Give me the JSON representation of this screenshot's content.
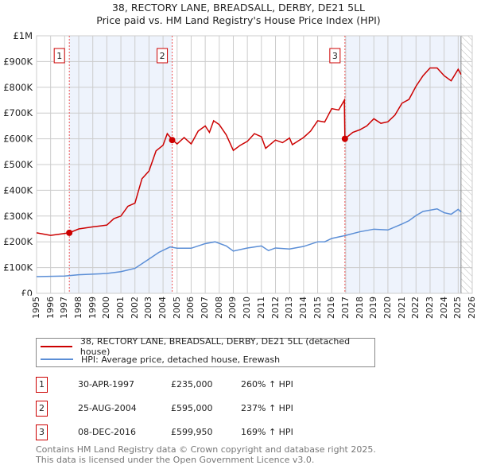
{
  "title": {
    "line1": "38, RECTORY LANE, BREADSALL, DERBY, DE21 5LL",
    "line2": "Price paid vs. HM Land Registry's House Price Index (HPI)"
  },
  "chart_data": {
    "type": "line",
    "xlim": [
      1995,
      2026
    ],
    "ylim": [
      0,
      1000000
    ],
    "x_ticks": [
      "1995",
      "1996",
      "1997",
      "1998",
      "1999",
      "2000",
      "2001",
      "2002",
      "2003",
      "2004",
      "2005",
      "2006",
      "2007",
      "2008",
      "2009",
      "2010",
      "2011",
      "2012",
      "2013",
      "2014",
      "2015",
      "2016",
      "2017",
      "2018",
      "2019",
      "2020",
      "2021",
      "2022",
      "2023",
      "2024",
      "2025",
      "2026"
    ],
    "y_ticks": [
      {
        "v": 0,
        "label": "£0"
      },
      {
        "v": 100000,
        "label": "£100K"
      },
      {
        "v": 200000,
        "label": "£200K"
      },
      {
        "v": 300000,
        "label": "£300K"
      },
      {
        "v": 400000,
        "label": "£400K"
      },
      {
        "v": 500000,
        "label": "£500K"
      },
      {
        "v": 600000,
        "label": "£600K"
      },
      {
        "v": 700000,
        "label": "£700K"
      },
      {
        "v": 800000,
        "label": "£800K"
      },
      {
        "v": 900000,
        "label": "£900K"
      },
      {
        "v": 1000000,
        "label": "£1M"
      }
    ],
    "grid": true,
    "data_end": 2025.2,
    "shaded_ranges": [
      [
        1997.33,
        2004.65
      ],
      [
        2016.94,
        2025.2
      ]
    ],
    "series": [
      {
        "name": "38, RECTORY LANE, BREADSALL, DERBY, DE21 5LL (detached house)",
        "color": "#cc0000",
        "x": [
          1995,
          1996,
          1997.33,
          1998,
          1999,
          2000,
          2000.5,
          2001,
          2001.5,
          2002,
          2002.5,
          2003,
          2003.5,
          2004,
          2004.3,
          2004.65,
          2005,
          2005.5,
          2006,
          2006.5,
          2007,
          2007.3,
          2007.6,
          2008,
          2008.5,
          2009,
          2009.5,
          2010,
          2010.5,
          2011,
          2011.3,
          2012,
          2012.5,
          2013,
          2013.2,
          2014,
          2014.5,
          2015,
          2015.5,
          2016,
          2016.5,
          2016.9,
          2016.94,
          2017.5,
          2018,
          2018.5,
          2019,
          2019.5,
          2020,
          2020.5,
          2021,
          2021.5,
          2022,
          2022.5,
          2023,
          2023.5,
          2024,
          2024.5,
          2025,
          2025.2
        ],
        "y": [
          235,
          225,
          235,
          250,
          258,
          265,
          290,
          300,
          338,
          350,
          445,
          475,
          553,
          575,
          620,
          597,
          580,
          605,
          580,
          630,
          650,
          625,
          670,
          655,
          615,
          555,
          575,
          590,
          620,
          608,
          563,
          595,
          585,
          603,
          577,
          605,
          630,
          670,
          665,
          717,
          712,
          750,
          600,
          625,
          635,
          650,
          678,
          660,
          666,
          692,
          738,
          753,
          804,
          845,
          875,
          875,
          845,
          825,
          870,
          850
        ]
      },
      {
        "name": "HPI: Average price, detached house, Erewash",
        "color": "#5b8ed6",
        "x": [
          1995,
          1997,
          1998,
          2000,
          2001,
          2002,
          2003,
          2003.7,
          2004.5,
          2005,
          2006,
          2007,
          2007.7,
          2008.5,
          2009,
          2010,
          2011,
          2011.5,
          2012,
          2013,
          2014,
          2015,
          2015.5,
          2016,
          2017,
          2018,
          2019,
          2020,
          2021,
          2021.5,
          2022,
          2022.5,
          2023,
          2023.5,
          2024,
          2024.5,
          2025,
          2025.2
        ],
        "y": [
          65,
          67,
          72,
          77,
          84,
          97,
          133,
          159,
          180,
          175,
          175,
          193,
          200,
          184,
          164,
          176,
          184,
          166,
          176,
          172,
          182,
          200,
          200,
          213,
          225,
          239,
          249,
          246,
          269,
          282,
          302,
          318,
          323,
          328,
          313,
          307,
          326,
          316
        ]
      }
    ],
    "y_units": "thousands GBP",
    "sales": [
      {
        "label": "1",
        "x": 1997.33,
        "y": 235
      },
      {
        "label": "2",
        "x": 2004.65,
        "y": 595
      },
      {
        "label": "3",
        "x": 2016.94,
        "y": 599.95
      }
    ],
    "legend_position": "below"
  },
  "legend": {
    "red": "38, RECTORY LANE, BREADSALL, DERBY, DE21 5LL (detached house)",
    "blue": "HPI: Average price, detached house, Erewash"
  },
  "transactions": [
    {
      "num": "1",
      "date": "30-APR-1997",
      "price": "£235,000",
      "hpi": "260% ↑ HPI"
    },
    {
      "num": "2",
      "date": "25-AUG-2004",
      "price": "£595,000",
      "hpi": "237% ↑ HPI"
    },
    {
      "num": "3",
      "date": "08-DEC-2016",
      "price": "£599,950",
      "hpi": "169% ↑ HPI"
    }
  ],
  "footer": {
    "line1": "Contains HM Land Registry data © Crown copyright and database right 2025.",
    "line2": "This data is licensed under the Open Government Licence v3.0."
  }
}
